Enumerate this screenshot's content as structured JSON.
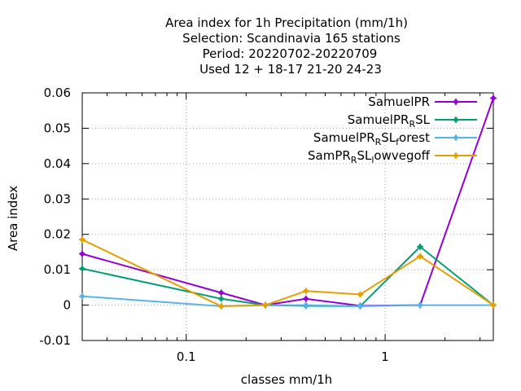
{
  "chart_data": {
    "type": "line",
    "title": [
      "Area index  for 1h Precipitation (mm/1h)",
      "Selection: Scandinavia    165 stations",
      "Period: 20220702-20220709",
      "Used  12 + 18-17 21-20 24-23"
    ],
    "xlabel": "classes mm/1h",
    "ylabel": "Area index",
    "xscale": "log",
    "xlim": [
      0.03,
      3.5
    ],
    "ylim": [
      -0.01,
      0.06
    ],
    "xticks_major": [
      {
        "value": 0.1,
        "label": "0.1"
      },
      {
        "value": 1,
        "label": "1"
      }
    ],
    "xticks_minor": [
      0.04,
      0.05,
      0.06,
      0.07,
      0.08,
      0.09,
      0.2,
      0.3,
      0.4,
      0.5,
      0.6,
      0.7,
      0.8,
      0.9,
      2,
      3
    ],
    "yticks": [
      {
        "value": -0.01,
        "label": "-0.01"
      },
      {
        "value": 0,
        "label": "0"
      },
      {
        "value": 0.01,
        "label": "0.01"
      },
      {
        "value": 0.02,
        "label": "0.02"
      },
      {
        "value": 0.03,
        "label": "0.03"
      },
      {
        "value": 0.04,
        "label": "0.04"
      },
      {
        "value": 0.05,
        "label": "0.05"
      },
      {
        "value": 0.06,
        "label": "0.06"
      }
    ],
    "grid": true,
    "legend_position": "top-right",
    "x": [
      0.03,
      0.15,
      0.25,
      0.4,
      0.75,
      1.5,
      3.5
    ],
    "series": [
      {
        "name": "SamuelPR",
        "label_main": "SamuelPR",
        "label_sub": "",
        "label_tail": "",
        "color": "#9400d3",
        "values": [
          0.0145,
          0.0035,
          0.0,
          0.0018,
          -0.0002,
          0.0,
          0.0585
        ]
      },
      {
        "name": "SamuelPR_RSL",
        "label_main": "SamuelPR",
        "label_sub": "R",
        "label_tail": "SL",
        "color": "#009e73",
        "values": [
          0.0103,
          0.0018,
          0.0,
          -0.0002,
          -0.0003,
          0.0165,
          0.0
        ]
      },
      {
        "name": "SamuelPR_RSL_forest",
        "label_main": "SamuelPR",
        "label_sub": "R",
        "label_tail": "SL",
        "label_sub2": "f",
        "label_tail2": "orest",
        "color": "#56b4e9",
        "values": [
          0.0025,
          -0.0003,
          0.0,
          0.0,
          -0.0003,
          0.0,
          0.0
        ]
      },
      {
        "name": "SamPR_RSL_lowvegoff",
        "label_main": "SamPR",
        "label_sub": "R",
        "label_tail": "SL",
        "label_sub2": "l",
        "label_tail2": "owvegoff",
        "color": "#e69f00",
        "values": [
          0.0185,
          -0.0003,
          0.0,
          0.004,
          0.003,
          0.0138,
          0.0
        ]
      }
    ]
  }
}
